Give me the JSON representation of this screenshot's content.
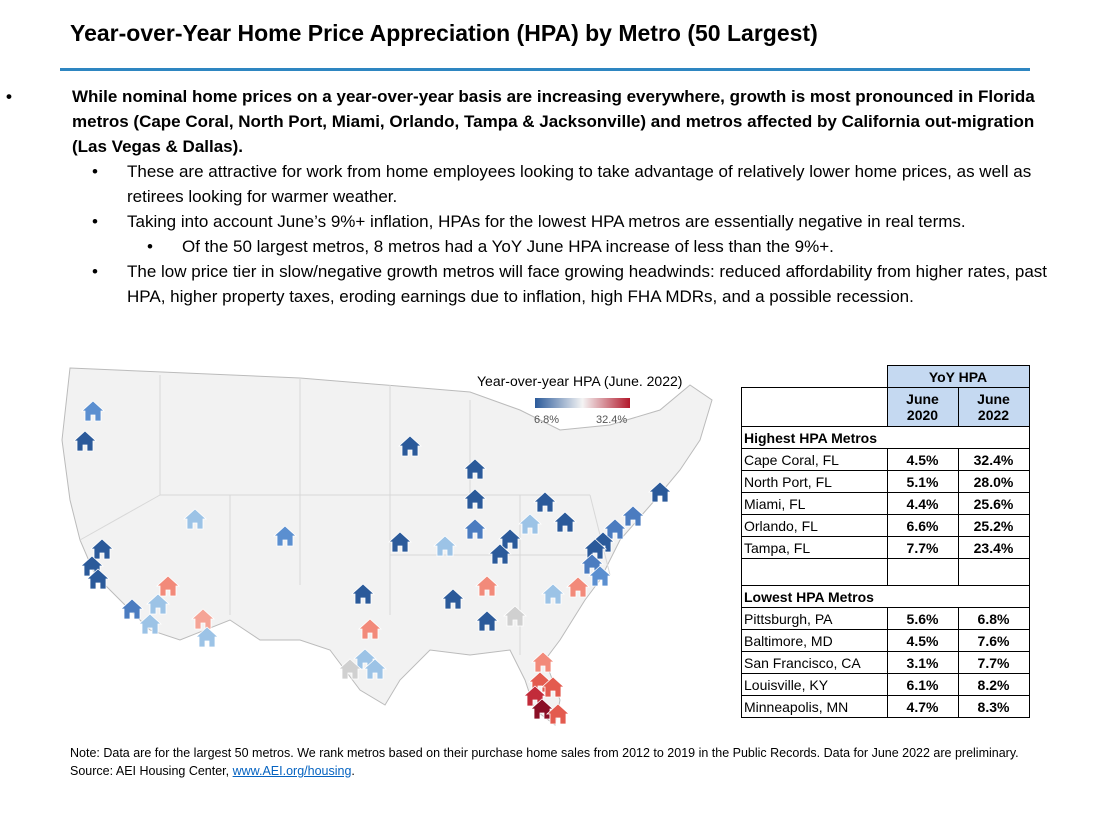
{
  "header": {
    "title": "Year-over-Year Home Price Appreciation (HPA) by Metro (50 Largest)"
  },
  "bullets": [
    {
      "text": "While nominal home prices on a year-over-year basis are increasing everywhere, growth is most pronounced in Florida metros (Cape Coral, North Port, Miami, Orlando, Tampa & Jacksonville) and metros affected by California out-migration (Las Vegas & Dallas).",
      "children": [
        {
          "text": "These are attractive for work from home employees looking to take advantage of relatively lower home prices, as well as retirees looking for warmer weather."
        },
        {
          "text": "Taking into account June’s 9%+ inflation, HPAs for the lowest HPA metros are essentially negative in real terms.",
          "children": [
            {
              "text": "Of the 50 largest metros, 8 metros had a YoY June HPA increase of less than the 9%+."
            }
          ]
        },
        {
          "text": "The low price tier in slow/negative growth metros will face growing headwinds: reduced affordability from higher rates, past HPA, higher property taxes, eroding earnings due to inflation, high FHA MDRs, and a possible recession."
        }
      ]
    }
  ],
  "map": {
    "title": "Year-over-year HPA (June. 2022)",
    "legend_min": "6.8%",
    "legend_max": "32.4%"
  },
  "table": {
    "group_header": "YoY HPA",
    "columns": [
      {
        "line1": "June",
        "line2": "2020"
      },
      {
        "line1": "June",
        "line2": "2022"
      }
    ],
    "sections": [
      {
        "title": "Highest HPA Metros",
        "rows": [
          [
            "Cape Coral, FL",
            "4.5%",
            "32.4%"
          ],
          [
            "North Port, FL",
            "5.1%",
            "28.0%"
          ],
          [
            "Miami, FL",
            "4.4%",
            "25.6%"
          ],
          [
            "Orlando, FL",
            "6.6%",
            "25.2%"
          ],
          [
            "Tampa, FL",
            "7.7%",
            "23.4%"
          ]
        ]
      },
      {
        "title": "Lowest HPA Metros",
        "rows": [
          [
            "Pittsburgh, PA",
            "5.6%",
            "6.8%"
          ],
          [
            "Baltimore, MD",
            "4.5%",
            "7.6%"
          ],
          [
            "San Francisco, CA",
            "3.1%",
            "7.7%"
          ],
          [
            "Louisville, KY",
            "6.1%",
            "8.2%"
          ],
          [
            "Minneapolis, MN",
            "4.7%",
            "8.3%"
          ]
        ]
      }
    ]
  },
  "note": "Note: Data are for the largest 50 metros. We rank metros based on their purchase home sales from 2012 to 2019 in the Public Records. Data for June 2022 are preliminary.",
  "source": {
    "prefix": "Source: AEI Housing Center,",
    "link": "www.AEI.org/housing",
    "suffix": "."
  }
}
